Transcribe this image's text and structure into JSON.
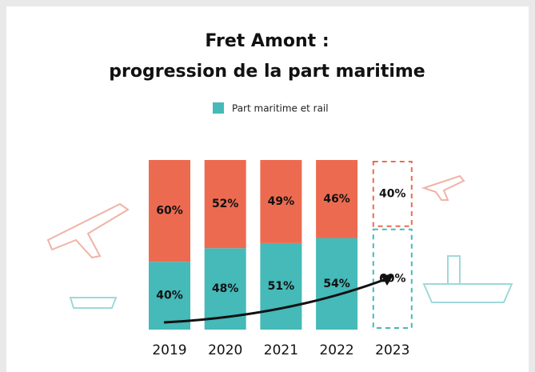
{
  "chart_data": {
    "type": "stacked_bar",
    "title": "Fret Amont :",
    "subtitle": "progression de la part maritime",
    "categories": [
      "2019",
      "2020",
      "2021",
      "2022",
      "2023"
    ],
    "dashed": [
      false,
      false,
      false,
      false,
      true
    ],
    "ylim": [
      0,
      100
    ],
    "series": [
      {
        "name": "Part maritime et rail",
        "color": "#46b9b9",
        "values": [
          40,
          48,
          51,
          54,
          60
        ],
        "value_labels": [
          "40%",
          "48%",
          "51%",
          "54%",
          "60%"
        ]
      },
      {
        "color": "#ec6b50",
        "values": [
          60,
          52,
          49,
          46,
          40
        ],
        "value_labels": [
          "60%",
          "52%",
          "49%",
          "46%",
          "40%"
        ]
      }
    ]
  }
}
